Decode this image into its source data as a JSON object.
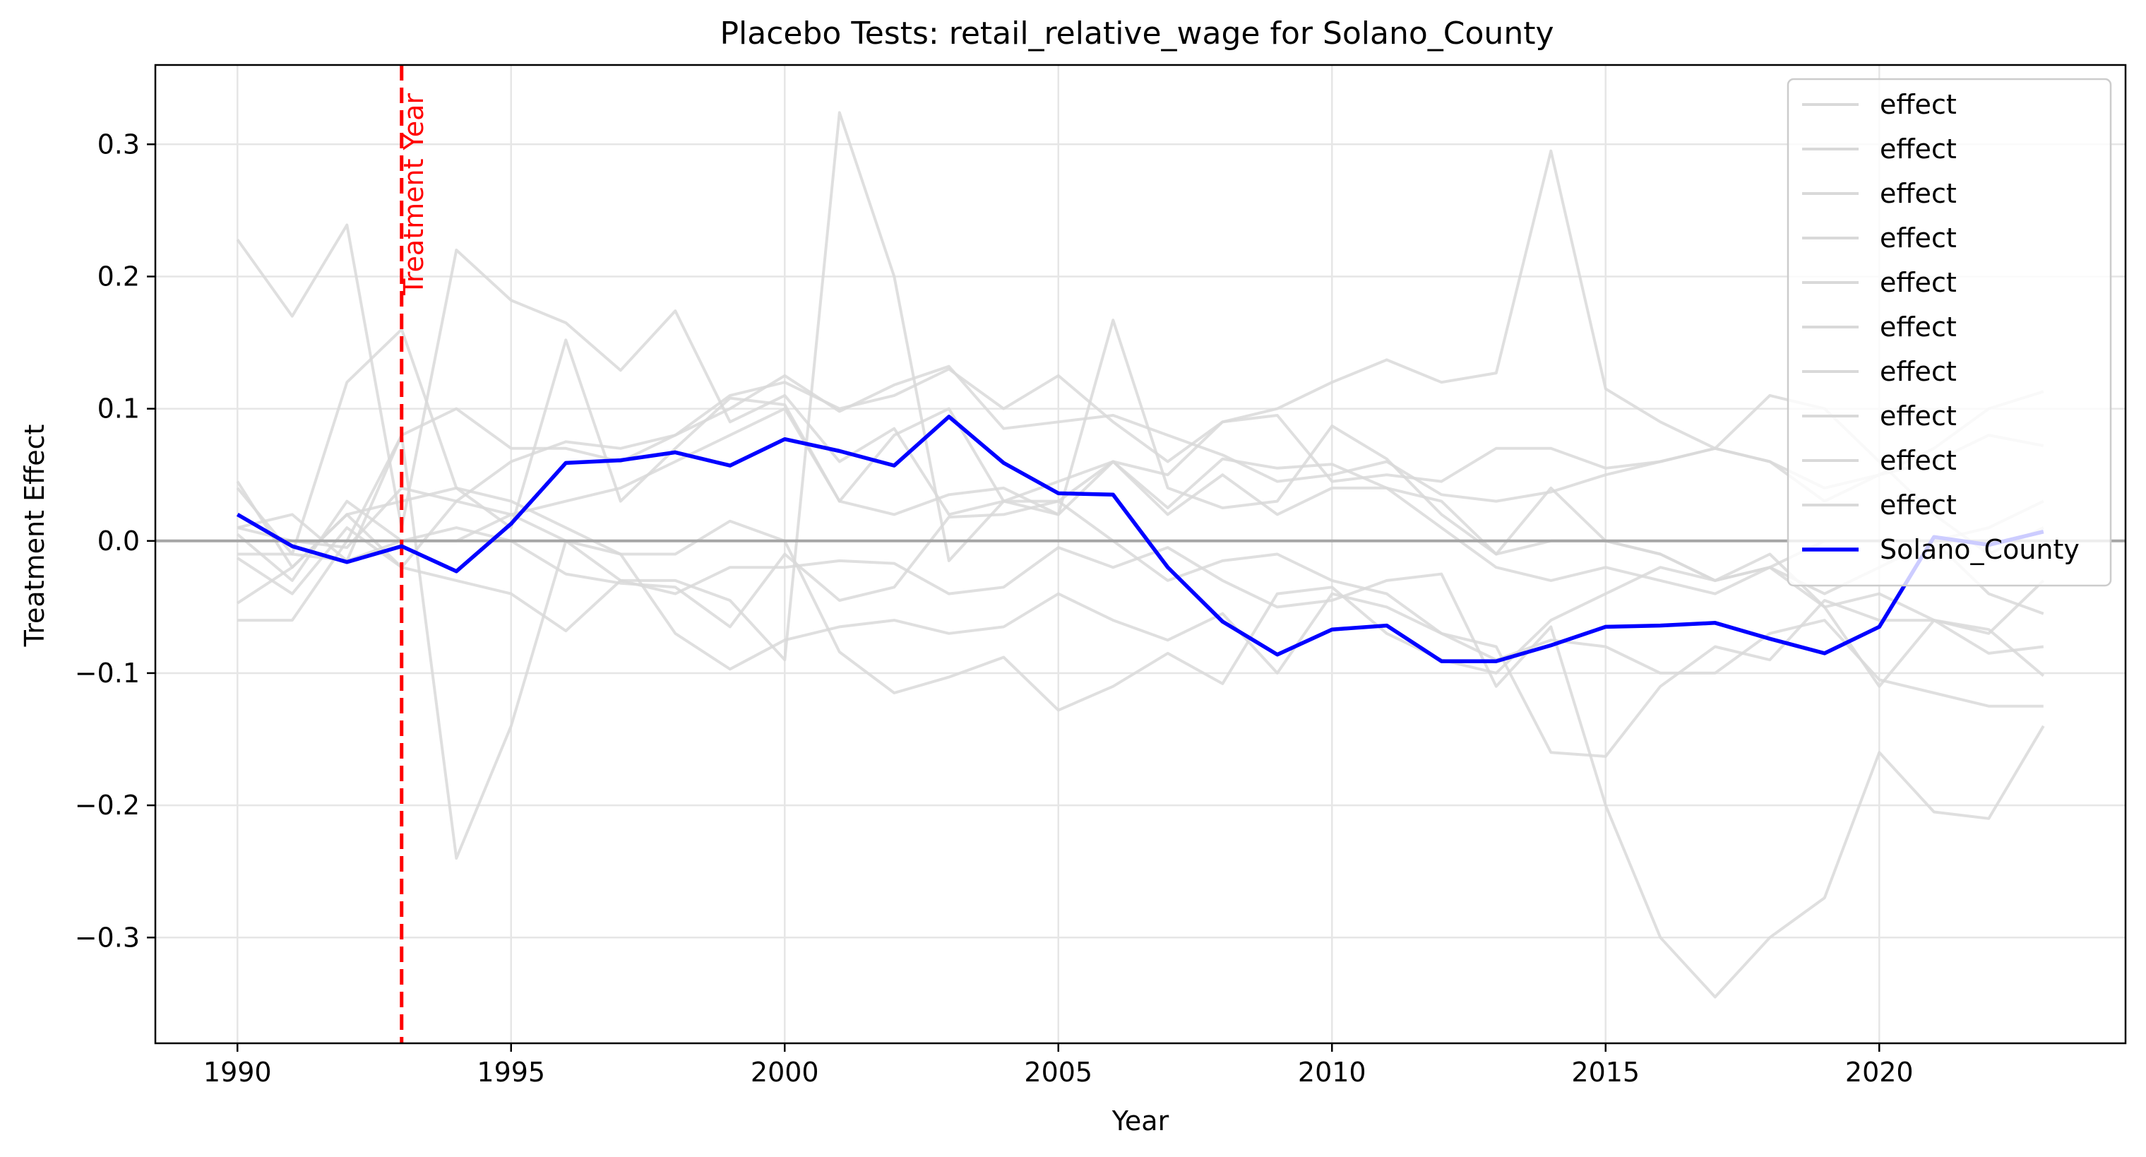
{
  "chart_data": {
    "type": "line",
    "title": "Placebo Tests: retail_relative_wage for Solano_County",
    "xlabel": "Year",
    "ylabel": "Treatment Effect",
    "xlim": [
      1988.5,
      2024.5
    ],
    "ylim": [
      -0.38,
      0.36
    ],
    "x_ticks": [
      1990,
      1995,
      2000,
      2005,
      2010,
      2015,
      2020
    ],
    "x_tick_labels": [
      "1990",
      "1995",
      "2000",
      "2005",
      "2010",
      "2015",
      "2020"
    ],
    "y_ticks": [
      -0.3,
      -0.2,
      -0.1,
      0.0,
      0.1,
      0.2,
      0.3
    ],
    "y_tick_labels": [
      "−0.3",
      "−0.2",
      "−0.1",
      "0.0",
      "0.1",
      "0.2",
      "0.3"
    ],
    "grid": true,
    "legend_position": "top-right",
    "treatment_year": 1993,
    "treatment_label": "Treatment Year",
    "zero_line": 0,
    "colors": {
      "placebo": "#d9d9d9",
      "treated": "#0000ff",
      "treatment_line": "#ff0000",
      "zero_line": "#a6a6a6",
      "grid": "#e6e6e6"
    },
    "x": [
      1990,
      1991,
      1992,
      1993,
      1994,
      1995,
      1996,
      1997,
      1998,
      1999,
      2000,
      2001,
      2002,
      2003,
      2004,
      2005,
      2006,
      2007,
      2008,
      2009,
      2010,
      2011,
      2012,
      2013,
      2014,
      2015,
      2016,
      2017,
      2018,
      2019,
      2020,
      2021,
      2022,
      2023
    ],
    "series": [
      {
        "name": "effect",
        "role": "placebo",
        "values": [
          0.228,
          0.17,
          0.239,
          0.01,
          0.22,
          0.182,
          0.165,
          0.129,
          0.174,
          0.09,
          0.11,
          0.06,
          0.085,
          0.02,
          0.03,
          0.045,
          0.06,
          0.025,
          0.062,
          0.055,
          0.058,
          0.04,
          0.03,
          -0.01,
          0.04,
          0.0,
          -0.01,
          -0.03,
          -0.02,
          -0.04,
          -0.02,
          0.0,
          0.01,
          0.03
        ]
      },
      {
        "name": "effect",
        "role": "placebo",
        "values": [
          0.04,
          -0.01,
          0.12,
          0.16,
          0.04,
          0.01,
          0.152,
          0.03,
          0.07,
          0.108,
          0.103,
          0.03,
          0.08,
          0.1,
          0.03,
          0.02,
          0.167,
          0.04,
          0.025,
          0.03,
          0.087,
          0.062,
          0.02,
          -0.01,
          0.0,
          0.0,
          -0.01,
          -0.03,
          -0.01,
          -0.05,
          -0.04,
          -0.06,
          -0.07,
          -0.03
        ]
      },
      {
        "name": "effect",
        "role": "placebo",
        "values": [
          0.045,
          -0.02,
          0.02,
          -0.02,
          0.03,
          0.06,
          0.075,
          0.07,
          0.08,
          0.11,
          0.12,
          0.1,
          0.11,
          0.13,
          0.1,
          0.125,
          0.09,
          0.06,
          0.09,
          0.1,
          0.12,
          0.137,
          0.12,
          0.127,
          0.295,
          0.115,
          0.09,
          0.07,
          0.11,
          0.1,
          0.06,
          0.02,
          -0.01,
          0.01
        ]
      },
      {
        "name": "effect",
        "role": "placebo",
        "values": [
          -0.01,
          -0.01,
          -0.015,
          0.08,
          0.1,
          0.07,
          0.07,
          0.06,
          0.08,
          0.1,
          0.125,
          0.098,
          0.118,
          0.132,
          0.085,
          0.09,
          0.095,
          0.08,
          0.065,
          0.045,
          0.05,
          0.06,
          0.035,
          0.03,
          0.037,
          0.05,
          0.06,
          0.07,
          0.06,
          0.04,
          0.05,
          0.07,
          0.1,
          0.113
        ]
      },
      {
        "name": "effect",
        "role": "placebo",
        "values": [
          0.01,
          0.0,
          -0.005,
          0.04,
          0.03,
          0.02,
          0.0,
          -0.03,
          -0.03,
          -0.045,
          -0.09,
          0.324,
          0.2,
          -0.015,
          0.03,
          0.03,
          0.06,
          0.05,
          0.09,
          0.095,
          0.045,
          0.05,
          0.045,
          0.07,
          0.07,
          0.055,
          0.06,
          0.07,
          0.06,
          0.03,
          0.05,
          0.06,
          0.08,
          0.072
        ]
      },
      {
        "name": "effect",
        "role": "placebo",
        "values": [
          0.01,
          0.02,
          -0.015,
          0.0,
          0.01,
          0.0,
          -0.025,
          -0.032,
          -0.035,
          -0.065,
          -0.01,
          -0.045,
          -0.035,
          0.018,
          0.02,
          0.03,
          0.0,
          -0.03,
          -0.015,
          -0.01,
          -0.03,
          -0.04,
          -0.07,
          -0.08,
          -0.16,
          -0.163,
          -0.11,
          -0.08,
          -0.09,
          -0.045,
          -0.06,
          -0.06,
          -0.067,
          -0.102
        ]
      },
      {
        "name": "effect",
        "role": "placebo",
        "values": [
          -0.013,
          -0.04,
          0.01,
          -0.02,
          -0.03,
          -0.04,
          -0.068,
          -0.03,
          -0.04,
          -0.02,
          -0.02,
          -0.015,
          -0.017,
          -0.04,
          -0.035,
          -0.005,
          -0.02,
          -0.005,
          -0.03,
          -0.05,
          -0.045,
          -0.03,
          -0.025,
          -0.11,
          -0.065,
          -0.2,
          -0.3,
          -0.345,
          -0.3,
          -0.27,
          -0.16,
          -0.205,
          -0.21,
          -0.14
        ]
      },
      {
        "name": "effect",
        "role": "placebo",
        "values": [
          -0.06,
          -0.06,
          0.0,
          0.08,
          -0.24,
          -0.14,
          0.0,
          -0.01,
          -0.07,
          -0.097,
          -0.075,
          -0.065,
          -0.06,
          -0.07,
          -0.065,
          -0.04,
          -0.06,
          -0.075,
          -0.055,
          -0.1,
          -0.04,
          -0.05,
          -0.07,
          -0.09,
          -0.075,
          -0.08,
          -0.1,
          -0.1,
          -0.07,
          -0.06,
          -0.105,
          -0.115,
          -0.125,
          -0.125
        ]
      },
      {
        "name": "effect",
        "role": "placebo",
        "values": [
          -0.047,
          -0.02,
          0.02,
          0.03,
          0.04,
          0.03,
          0.01,
          -0.01,
          -0.01,
          0.015,
          0.0,
          -0.084,
          -0.115,
          -0.103,
          -0.088,
          -0.128,
          -0.11,
          -0.085,
          -0.108,
          -0.04,
          -0.035,
          -0.07,
          -0.09,
          -0.1,
          -0.06,
          -0.04,
          -0.02,
          -0.03,
          -0.02,
          -0.05,
          -0.11,
          -0.06,
          -0.085,
          -0.08
        ]
      },
      {
        "name": "effect",
        "role": "placebo",
        "values": [
          0.005,
          -0.03,
          0.03,
          0.0,
          0.0,
          0.02,
          0.03,
          0.04,
          0.06,
          0.08,
          0.1,
          0.03,
          0.02,
          0.035,
          0.04,
          0.02,
          0.06,
          0.02,
          0.05,
          0.02,
          0.04,
          0.04,
          0.01,
          -0.02,
          -0.03,
          -0.02,
          -0.03,
          -0.04,
          -0.02,
          0.0,
          0.0,
          0.0,
          -0.04,
          -0.055
        ]
      },
      {
        "name": "Solano_County",
        "role": "treated",
        "values": [
          0.02,
          -0.004,
          -0.016,
          -0.004,
          -0.023,
          0.013,
          0.059,
          0.061,
          0.067,
          0.057,
          0.077,
          0.068,
          0.057,
          0.094,
          0.059,
          0.036,
          0.035,
          -0.02,
          -0.061,
          -0.086,
          -0.067,
          -0.064,
          -0.091,
          -0.091,
          -0.079,
          -0.065,
          -0.064,
          -0.062,
          -0.074,
          -0.085,
          -0.065,
          0.003,
          -0.003,
          0.007
        ]
      }
    ]
  }
}
